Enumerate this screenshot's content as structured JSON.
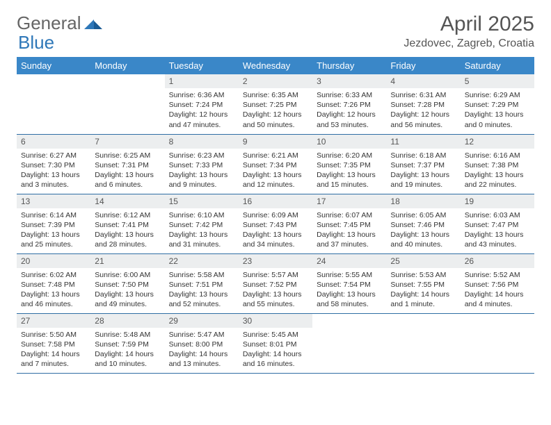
{
  "brand": {
    "part1": "General",
    "part2": "Blue"
  },
  "title": "April 2025",
  "location": "Jezdovec, Zagreb, Croatia",
  "colors": {
    "header_bg": "#3a87c8",
    "header_text": "#ffffff",
    "daynum_bg": "#eceeef",
    "border": "#2e6da4",
    "brand_blue": "#2e77b8",
    "text": "#333333"
  },
  "weekdays": [
    "Sunday",
    "Monday",
    "Tuesday",
    "Wednesday",
    "Thursday",
    "Friday",
    "Saturday"
  ],
  "weeks": [
    [
      null,
      null,
      {
        "n": "1",
        "sr": "Sunrise: 6:36 AM",
        "ss": "Sunset: 7:24 PM",
        "dl": "Daylight: 12 hours and 47 minutes."
      },
      {
        "n": "2",
        "sr": "Sunrise: 6:35 AM",
        "ss": "Sunset: 7:25 PM",
        "dl": "Daylight: 12 hours and 50 minutes."
      },
      {
        "n": "3",
        "sr": "Sunrise: 6:33 AM",
        "ss": "Sunset: 7:26 PM",
        "dl": "Daylight: 12 hours and 53 minutes."
      },
      {
        "n": "4",
        "sr": "Sunrise: 6:31 AM",
        "ss": "Sunset: 7:28 PM",
        "dl": "Daylight: 12 hours and 56 minutes."
      },
      {
        "n": "5",
        "sr": "Sunrise: 6:29 AM",
        "ss": "Sunset: 7:29 PM",
        "dl": "Daylight: 13 hours and 0 minutes."
      }
    ],
    [
      {
        "n": "6",
        "sr": "Sunrise: 6:27 AM",
        "ss": "Sunset: 7:30 PM",
        "dl": "Daylight: 13 hours and 3 minutes."
      },
      {
        "n": "7",
        "sr": "Sunrise: 6:25 AM",
        "ss": "Sunset: 7:31 PM",
        "dl": "Daylight: 13 hours and 6 minutes."
      },
      {
        "n": "8",
        "sr": "Sunrise: 6:23 AM",
        "ss": "Sunset: 7:33 PM",
        "dl": "Daylight: 13 hours and 9 minutes."
      },
      {
        "n": "9",
        "sr": "Sunrise: 6:21 AM",
        "ss": "Sunset: 7:34 PM",
        "dl": "Daylight: 13 hours and 12 minutes."
      },
      {
        "n": "10",
        "sr": "Sunrise: 6:20 AM",
        "ss": "Sunset: 7:35 PM",
        "dl": "Daylight: 13 hours and 15 minutes."
      },
      {
        "n": "11",
        "sr": "Sunrise: 6:18 AM",
        "ss": "Sunset: 7:37 PM",
        "dl": "Daylight: 13 hours and 19 minutes."
      },
      {
        "n": "12",
        "sr": "Sunrise: 6:16 AM",
        "ss": "Sunset: 7:38 PM",
        "dl": "Daylight: 13 hours and 22 minutes."
      }
    ],
    [
      {
        "n": "13",
        "sr": "Sunrise: 6:14 AM",
        "ss": "Sunset: 7:39 PM",
        "dl": "Daylight: 13 hours and 25 minutes."
      },
      {
        "n": "14",
        "sr": "Sunrise: 6:12 AM",
        "ss": "Sunset: 7:41 PM",
        "dl": "Daylight: 13 hours and 28 minutes."
      },
      {
        "n": "15",
        "sr": "Sunrise: 6:10 AM",
        "ss": "Sunset: 7:42 PM",
        "dl": "Daylight: 13 hours and 31 minutes."
      },
      {
        "n": "16",
        "sr": "Sunrise: 6:09 AM",
        "ss": "Sunset: 7:43 PM",
        "dl": "Daylight: 13 hours and 34 minutes."
      },
      {
        "n": "17",
        "sr": "Sunrise: 6:07 AM",
        "ss": "Sunset: 7:45 PM",
        "dl": "Daylight: 13 hours and 37 minutes."
      },
      {
        "n": "18",
        "sr": "Sunrise: 6:05 AM",
        "ss": "Sunset: 7:46 PM",
        "dl": "Daylight: 13 hours and 40 minutes."
      },
      {
        "n": "19",
        "sr": "Sunrise: 6:03 AM",
        "ss": "Sunset: 7:47 PM",
        "dl": "Daylight: 13 hours and 43 minutes."
      }
    ],
    [
      {
        "n": "20",
        "sr": "Sunrise: 6:02 AM",
        "ss": "Sunset: 7:48 PM",
        "dl": "Daylight: 13 hours and 46 minutes."
      },
      {
        "n": "21",
        "sr": "Sunrise: 6:00 AM",
        "ss": "Sunset: 7:50 PM",
        "dl": "Daylight: 13 hours and 49 minutes."
      },
      {
        "n": "22",
        "sr": "Sunrise: 5:58 AM",
        "ss": "Sunset: 7:51 PM",
        "dl": "Daylight: 13 hours and 52 minutes."
      },
      {
        "n": "23",
        "sr": "Sunrise: 5:57 AM",
        "ss": "Sunset: 7:52 PM",
        "dl": "Daylight: 13 hours and 55 minutes."
      },
      {
        "n": "24",
        "sr": "Sunrise: 5:55 AM",
        "ss": "Sunset: 7:54 PM",
        "dl": "Daylight: 13 hours and 58 minutes."
      },
      {
        "n": "25",
        "sr": "Sunrise: 5:53 AM",
        "ss": "Sunset: 7:55 PM",
        "dl": "Daylight: 14 hours and 1 minute."
      },
      {
        "n": "26",
        "sr": "Sunrise: 5:52 AM",
        "ss": "Sunset: 7:56 PM",
        "dl": "Daylight: 14 hours and 4 minutes."
      }
    ],
    [
      {
        "n": "27",
        "sr": "Sunrise: 5:50 AM",
        "ss": "Sunset: 7:58 PM",
        "dl": "Daylight: 14 hours and 7 minutes."
      },
      {
        "n": "28",
        "sr": "Sunrise: 5:48 AM",
        "ss": "Sunset: 7:59 PM",
        "dl": "Daylight: 14 hours and 10 minutes."
      },
      {
        "n": "29",
        "sr": "Sunrise: 5:47 AM",
        "ss": "Sunset: 8:00 PM",
        "dl": "Daylight: 14 hours and 13 minutes."
      },
      {
        "n": "30",
        "sr": "Sunrise: 5:45 AM",
        "ss": "Sunset: 8:01 PM",
        "dl": "Daylight: 14 hours and 16 minutes."
      },
      null,
      null,
      null
    ]
  ]
}
